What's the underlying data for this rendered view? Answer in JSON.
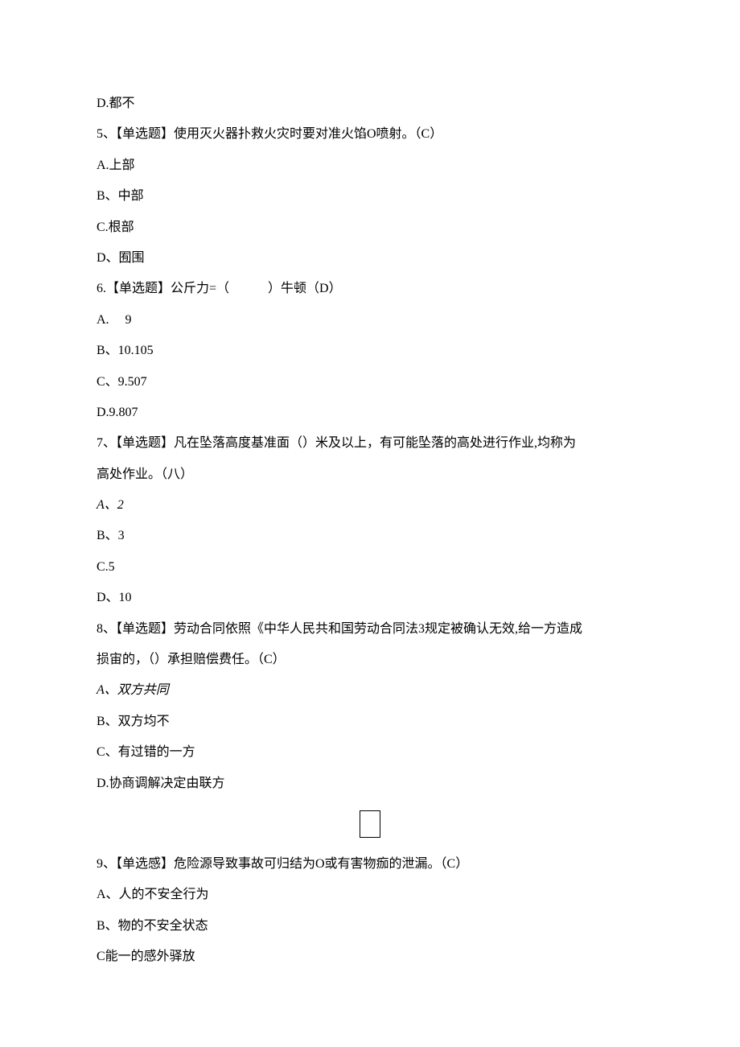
{
  "text_color": "#000000",
  "background_color": "#ffffff",
  "font_family": "SimSun",
  "font_size_pt": 12,
  "line_height": 2.4,
  "lines": {
    "l01": "D.都不",
    "l02": "5、【单选题】使用灭火器扑救火灾时要对准火馅O喷射。（C）",
    "l03": "A.上部",
    "l04": "B、中部",
    "l05": "C.根部",
    "l06": "D、囿围",
    "l07": "6.【单选题】公斤力=（　　　）牛顿（D）",
    "l08": "A.　 9",
    "l09": "B、10.105",
    "l10": "C、9.507",
    "l11": "D.9.807",
    "l12": "7、【单选题】凡在坠落高度基准面（）米及以上，有可能坠落的高处进行作业,均称为",
    "l13": "高处作业。（八）",
    "l14": "A、2",
    "l15": "B、3",
    "l16": "C.5",
    "l17": "D、10",
    "l18": "8、【单选题】劳动合同依照《中华人民共和国劳动合同法3规定被确认无效,给一方造成",
    "l19": "损宙的，（）承担赔偿费任。（C）",
    "l20": "A、双方共同",
    "l21": "B、双方均不",
    "l22": "C、有过错的一方",
    "l23": "D.协商调解决定由联方",
    "l24": "9、【单选感】危险源导致事故可归结为O或有害物痂的泄漏。（C）",
    "l25": "A、人的不安全行为",
    "l26": "B、物的不安全状态",
    "l27": "C能一的感外驿放"
  }
}
